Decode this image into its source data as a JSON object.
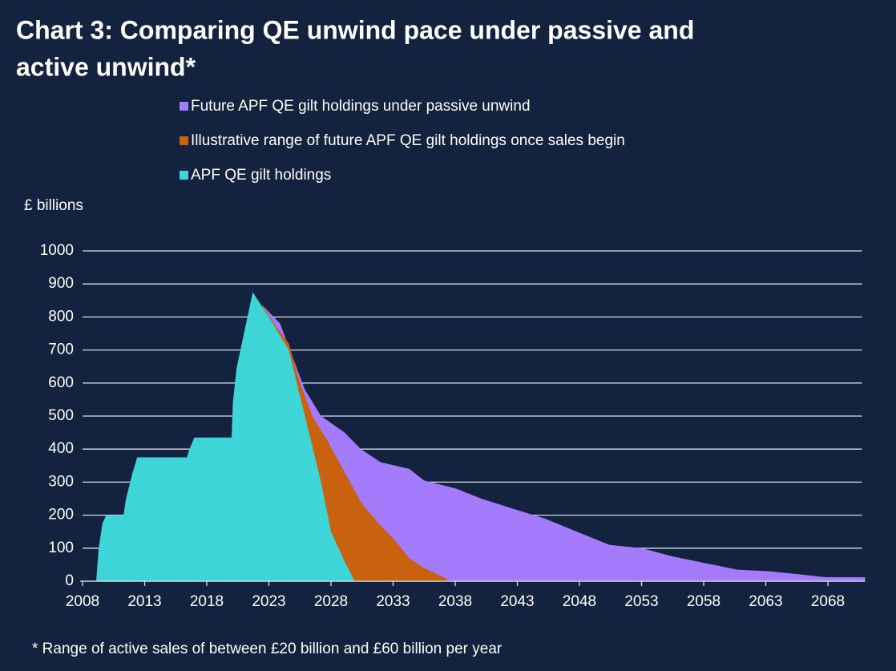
{
  "chart_data": {
    "type": "area",
    "title": [
      "Chart 3: Comparing QE unwind pace under passive and",
      "active unwind*"
    ],
    "y_label": "£ billions",
    "footnote": "* Range of active sales of between £20 billion and £60 billion per year",
    "xlim": [
      2008,
      2071
    ],
    "xticks": [
      2008,
      2013,
      2018,
      2023,
      2028,
      2033,
      2038,
      2043,
      2048,
      2053,
      2058,
      2063,
      2068
    ],
    "ylim": [
      0,
      1000
    ],
    "yticks": [
      0,
      100,
      200,
      300,
      400,
      500,
      600,
      700,
      800,
      900,
      1000
    ],
    "grid": true,
    "series": [
      {
        "name": "Future APF QE gilt holdings under passive unwind",
        "color": "#a47bfa",
        "x": [
          2022.5,
          2023.9,
          2025.2,
          2025.9,
          2027.2,
          2029.1,
          2030.4,
          2032,
          2034.3,
          2035.5,
          2038.1,
          2040.1,
          2042.6,
          2045.2,
          2047.8,
          2050.4,
          2053,
          2055.5,
          2058.1,
          2060.7,
          2063.3,
          2065.9,
          2067.8,
          2071
        ],
        "values": [
          835,
          780,
          650,
          580,
          500,
          450,
          400,
          360,
          340,
          305,
          280,
          250,
          220,
          190,
          150,
          110,
          100,
          75,
          55,
          35,
          30,
          20,
          12,
          12
        ]
      },
      {
        "name": "Illustrative range of future APF QE gilt holdings once sales begin",
        "color": "#c8620f",
        "x": [
          2022.5,
          2023.6,
          2024.6,
          2025.5,
          2026.5,
          2027.8,
          2029.1,
          2030.4,
          2031.7,
          2033,
          2034.3,
          2035.5,
          2037.2,
          2037.5
        ],
        "values": [
          835,
          770,
          720,
          600,
          500,
          420,
          330,
          240,
          180,
          130,
          70,
          40,
          10,
          0
        ]
      },
      {
        "name": "APF QE gilt holdings",
        "color": "#3dd5d8",
        "x": [
          2009.1,
          2009.3,
          2009.6,
          2009.9,
          2011.3,
          2011.5,
          2012,
          2012.4,
          2016.4,
          2016.6,
          2017,
          2020,
          2020.1,
          2020.4,
          2021.7,
          2023,
          2024.6,
          2025.9,
          2027.2,
          2028,
          2029.1,
          2029.9
        ],
        "values": [
          0,
          100,
          175,
          200,
          200,
          250,
          325,
          375,
          375,
          400,
          435,
          435,
          540,
          645,
          875,
          800,
          700,
          500,
          300,
          150,
          60,
          0
        ]
      }
    ]
  }
}
